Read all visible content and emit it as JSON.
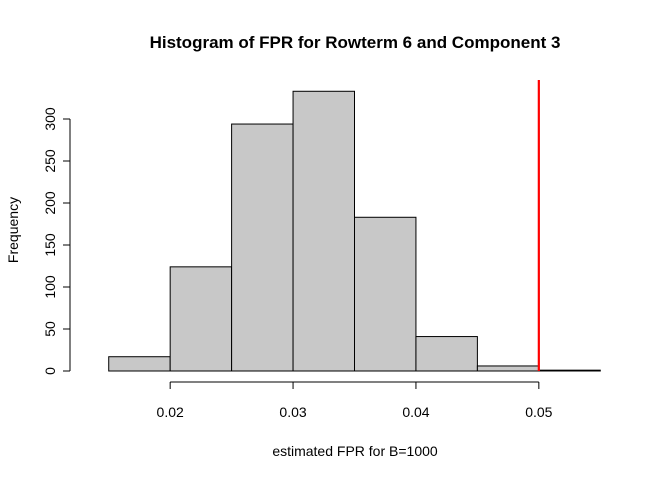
{
  "chart_data": {
    "type": "bar",
    "title": "Histogram of FPR for Rowterm 6 and Component 3",
    "xlabel": "estimated FPR for B=1000",
    "ylabel": "Frequency",
    "bins": [
      {
        "x0": 0.015,
        "x1": 0.02,
        "count": 17
      },
      {
        "x0": 0.02,
        "x1": 0.025,
        "count": 124
      },
      {
        "x0": 0.025,
        "x1": 0.03,
        "count": 294
      },
      {
        "x0": 0.03,
        "x1": 0.035,
        "count": 333
      },
      {
        "x0": 0.035,
        "x1": 0.04,
        "count": 183
      },
      {
        "x0": 0.04,
        "x1": 0.045,
        "count": 41
      },
      {
        "x0": 0.045,
        "x1": 0.05,
        "count": 6
      },
      {
        "x0": 0.05,
        "x1": 0.055,
        "count": 1
      }
    ],
    "x_ticks": [
      0.02,
      0.03,
      0.04,
      0.05
    ],
    "x_tick_labels": [
      "0.02",
      "0.03",
      "0.04",
      "0.05"
    ],
    "y_ticks": [
      0,
      50,
      100,
      150,
      200,
      250,
      300
    ],
    "y_tick_labels": [
      "0",
      "50",
      "100",
      "150",
      "200",
      "250",
      "300"
    ],
    "xlim": [
      0.0125,
      0.0575
    ],
    "ylim": [
      0,
      350
    ],
    "reference_line": {
      "x": 0.05,
      "color": "#ff0000"
    },
    "bar_fill": "#c8c8c8",
    "grid": false
  }
}
